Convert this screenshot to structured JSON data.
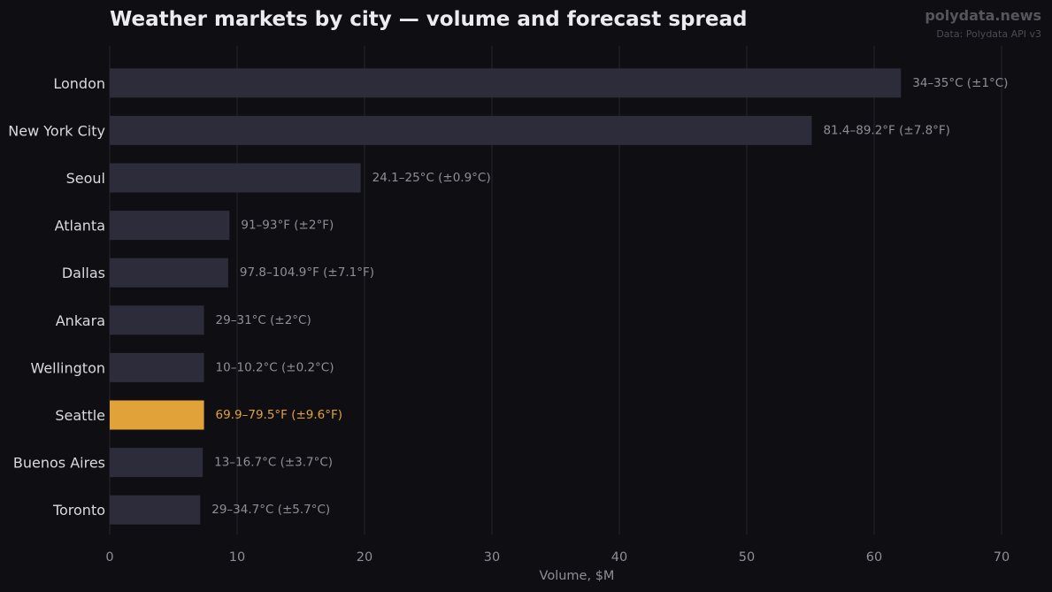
{
  "header": {
    "title": "Weather markets by city — volume and forecast spread",
    "brand": "polydata.news",
    "source": "Data: Polydata API v3"
  },
  "chart_data": {
    "type": "bar",
    "orientation": "horizontal",
    "title": "Weather markets by city — volume and forecast spread",
    "xlabel": "Volume, $M",
    "ylabel": "",
    "xlim": [
      0,
      70
    ],
    "xticks": [
      0,
      10,
      20,
      30,
      40,
      50,
      60,
      70
    ],
    "grid": "vertical",
    "categories": [
      "London",
      "New York City",
      "Seoul",
      "Atlanta",
      "Dallas",
      "Ankara",
      "Wellington",
      "Seattle",
      "Buenos Aires",
      "Toronto"
    ],
    "values": [
      62.1,
      55.1,
      19.7,
      9.4,
      9.3,
      7.4,
      7.4,
      7.4,
      7.3,
      7.1
    ],
    "annotations": [
      "34–35°C (±1°C)",
      "81.4–89.2°F (±7.8°F)",
      "24.1–25°C (±0.9°C)",
      "91–93°F (±2°F)",
      "97.8–104.9°F (±7.1°F)",
      "29–31°C (±2°C)",
      "10–10.2°C (±0.2°C)",
      "69.9–79.5°F (±9.6°F)",
      "13–16.7°C (±3.7°C)",
      "29–34.7°C (±5.7°C)"
    ],
    "highlight": "Seattle",
    "colors": {
      "bar": "#2c2c3a",
      "highlight": "#e2a23a",
      "grid": "#25252c",
      "background": "#0f0f13"
    }
  }
}
